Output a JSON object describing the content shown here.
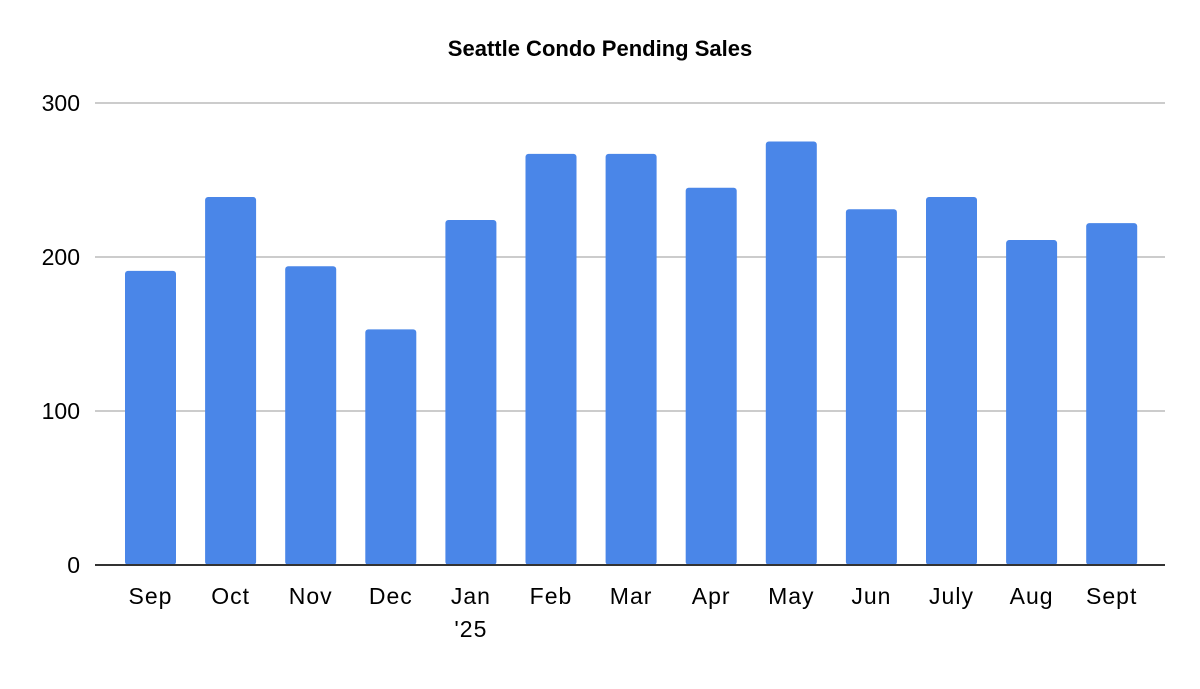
{
  "chart_data": {
    "type": "bar",
    "title": "Seattle Condo Pending Sales",
    "xlabel": "",
    "ylabel": "",
    "categories": [
      "Sep",
      "Oct",
      "Nov",
      "Dec",
      "Jan\n'25",
      "Feb",
      "Mar",
      "Apr",
      "May",
      "Jun",
      "July",
      "Aug",
      "Sept"
    ],
    "values": [
      191,
      239,
      194,
      153,
      224,
      267,
      267,
      245,
      275,
      231,
      239,
      211,
      222
    ],
    "ylim": [
      0,
      300
    ],
    "yticks": [
      "0",
      "100",
      "200",
      "300"
    ],
    "ytick_values": [
      0,
      100,
      200,
      300
    ],
    "grid": true,
    "legend": "none",
    "bar_color": "#4a86e8"
  }
}
